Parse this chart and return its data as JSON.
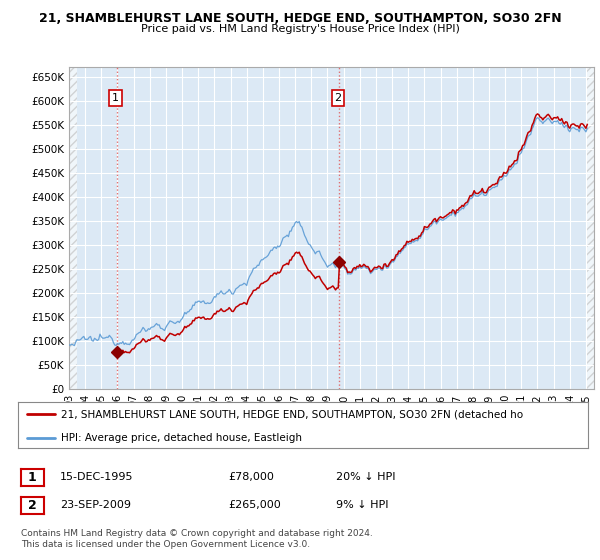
{
  "title_line1": "21, SHAMBLEHURST LANE SOUTH, HEDGE END, SOUTHAMPTON, SO30 2FN",
  "title_line2": "Price paid vs. HM Land Registry's House Price Index (HPI)",
  "ylim": [
    0,
    670000
  ],
  "yticks": [
    0,
    50000,
    100000,
    150000,
    200000,
    250000,
    300000,
    350000,
    400000,
    450000,
    500000,
    550000,
    600000,
    650000
  ],
  "ytick_labels": [
    "£0",
    "£50K",
    "£100K",
    "£150K",
    "£200K",
    "£250K",
    "£300K",
    "£350K",
    "£400K",
    "£450K",
    "£500K",
    "£550K",
    "£600K",
    "£650K"
  ],
  "hpi_color": "#5b9bd5",
  "price_color": "#c00000",
  "dot_color": "#8b0000",
  "vline_color": "#e06060",
  "chart_bg_color": "#dce9f5",
  "grid_color": "#ffffff",
  "sale1_date_num": 1995.96,
  "sale1_price": 78000,
  "sale1_label": "1",
  "sale2_date_num": 2009.73,
  "sale2_price": 265000,
  "sale2_label": "2",
  "legend_line1": "21, SHAMBLEHURST LANE SOUTH, HEDGE END, SOUTHAMPTON, SO30 2FN (detached ho",
  "legend_line2": "HPI: Average price, detached house, Eastleigh",
  "note1_num": "1",
  "note1_date": "15-DEC-1995",
  "note1_price": "£78,000",
  "note1_hpi": "20% ↓ HPI",
  "note2_num": "2",
  "note2_date": "23-SEP-2009",
  "note2_price": "£265,000",
  "note2_hpi": "9% ↓ HPI",
  "copyright": "Contains HM Land Registry data © Crown copyright and database right 2024.\nThis data is licensed under the Open Government Licence v3.0.",
  "xmin": 1993.0,
  "xmax": 2025.5
}
